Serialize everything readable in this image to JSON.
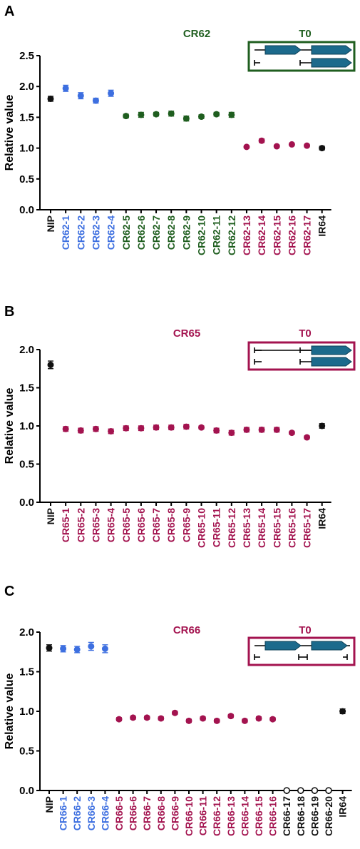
{
  "colors": {
    "black": "#111111",
    "blue": "#3d6fe0",
    "green": "#1f5e1f",
    "magenta": "#a3134f",
    "teal": "#1c6a8c"
  },
  "chart_data": [
    {
      "type": "scatter",
      "panel_label": "A",
      "title": "CR62",
      "generation_label": "T0",
      "ylabel": "Relative value",
      "ylim": [
        0,
        2.5
      ],
      "yticks": [
        "0.0",
        "0.5",
        "1.0",
        "1.5",
        "2.0",
        "2.5"
      ],
      "frame_color": "green",
      "categories": [
        "NIP",
        "CR62-1",
        "CR62-2",
        "CR62-3",
        "CR62-4",
        "CR62-5",
        "CR62-6",
        "CR62-7",
        "CR62-8",
        "CR62-9",
        "CR62-10",
        "CR62-11",
        "CR62-12",
        "CR62-13",
        "CR62-14",
        "CR62-15",
        "CR62-16",
        "CR62-17",
        "IR64"
      ],
      "label_colors": [
        "black",
        "blue",
        "blue",
        "blue",
        "blue",
        "green",
        "green",
        "green",
        "green",
        "green",
        "green",
        "green",
        "green",
        "magenta",
        "magenta",
        "magenta",
        "magenta",
        "magenta",
        "black"
      ],
      "values": [
        1.8,
        1.97,
        1.85,
        1.77,
        1.89,
        1.52,
        1.54,
        1.55,
        1.56,
        1.48,
        1.51,
        1.55,
        1.54,
        1.02,
        1.12,
        1.03,
        1.06,
        1.04,
        1.0
      ],
      "errors": [
        0.04,
        0.05,
        0.05,
        0.04,
        0.05,
        0.03,
        0.04,
        0.03,
        0.04,
        0.04,
        0.03,
        0.03,
        0.04,
        0.02,
        0.03,
        0.02,
        0.02,
        0.02,
        0.03
      ],
      "hollow": [],
      "schematic": "cr62"
    },
    {
      "type": "scatter",
      "panel_label": "B",
      "title": "CR65",
      "generation_label": "T0",
      "ylabel": "Relative value",
      "ylim": [
        0,
        2.0
      ],
      "yticks": [
        "0.0",
        "0.5",
        "1.0",
        "1.5",
        "2.0"
      ],
      "frame_color": "magenta",
      "categories": [
        "NIP",
        "CR65-1",
        "CR65-2",
        "CR65-3",
        "CR65-4",
        "CR65-5",
        "CR65-6",
        "CR65-7",
        "CR65-8",
        "CR65-9",
        "CR65-10",
        "CR65-11",
        "CR65-12",
        "CR65-13",
        "CR65-14",
        "CR65-15",
        "CR65-16",
        "CR65-17",
        "IR64"
      ],
      "label_colors": [
        "black",
        "magenta",
        "magenta",
        "magenta",
        "magenta",
        "magenta",
        "magenta",
        "magenta",
        "magenta",
        "magenta",
        "magenta",
        "magenta",
        "magenta",
        "magenta",
        "magenta",
        "magenta",
        "magenta",
        "magenta",
        "black"
      ],
      "values": [
        1.8,
        0.96,
        0.94,
        0.96,
        0.93,
        0.97,
        0.97,
        0.98,
        0.98,
        0.99,
        0.98,
        0.94,
        0.91,
        0.95,
        0.95,
        0.95,
        0.91,
        0.85,
        1.0
      ],
      "errors": [
        0.05,
        0.03,
        0.03,
        0.03,
        0.03,
        0.03,
        0.03,
        0.03,
        0.03,
        0.03,
        0.02,
        0.03,
        0.03,
        0.03,
        0.03,
        0.03,
        0.02,
        0.02,
        0.03
      ],
      "hollow": [],
      "schematic": "cr65"
    },
    {
      "type": "scatter",
      "panel_label": "C",
      "title": "CR66",
      "generation_label": "T0",
      "ylabel": "Relative value",
      "ylim": [
        0,
        2.0
      ],
      "yticks": [
        "0.0",
        "0.5",
        "1.0",
        "1.5",
        "2.0"
      ],
      "frame_color": "magenta",
      "categories": [
        "NIP",
        "CR66-1",
        "CR66-2",
        "CR66-3",
        "CR66-4",
        "CR66-5",
        "CR66-6",
        "CR66-7",
        "CR66-8",
        "CR66-9",
        "CR66-10",
        "CR66-11",
        "CR66-12",
        "CR66-13",
        "CR66-14",
        "CR66-15",
        "CR66-16",
        "CR66-17",
        "CR66-18",
        "CR66-19",
        "CR66-20",
        "IR64"
      ],
      "label_colors": [
        "black",
        "blue",
        "blue",
        "blue",
        "blue",
        "magenta",
        "magenta",
        "magenta",
        "magenta",
        "magenta",
        "magenta",
        "magenta",
        "magenta",
        "magenta",
        "magenta",
        "magenta",
        "magenta",
        "black",
        "black",
        "black",
        "black",
        "black"
      ],
      "values": [
        1.8,
        1.79,
        1.78,
        1.82,
        1.79,
        0.9,
        0.92,
        0.92,
        0.91,
        0.98,
        0.88,
        0.91,
        0.88,
        0.94,
        0.88,
        0.91,
        0.9,
        0.0,
        0.0,
        0.0,
        0.0,
        1.0
      ],
      "errors": [
        0.04,
        0.04,
        0.04,
        0.05,
        0.05,
        0.02,
        0.02,
        0.02,
        0.02,
        0.02,
        0.02,
        0.02,
        0.02,
        0.02,
        0.02,
        0.02,
        0.02,
        0,
        0,
        0,
        0,
        0.03
      ],
      "hollow": [
        17,
        18,
        19,
        20
      ],
      "schematic": "cr66"
    }
  ]
}
